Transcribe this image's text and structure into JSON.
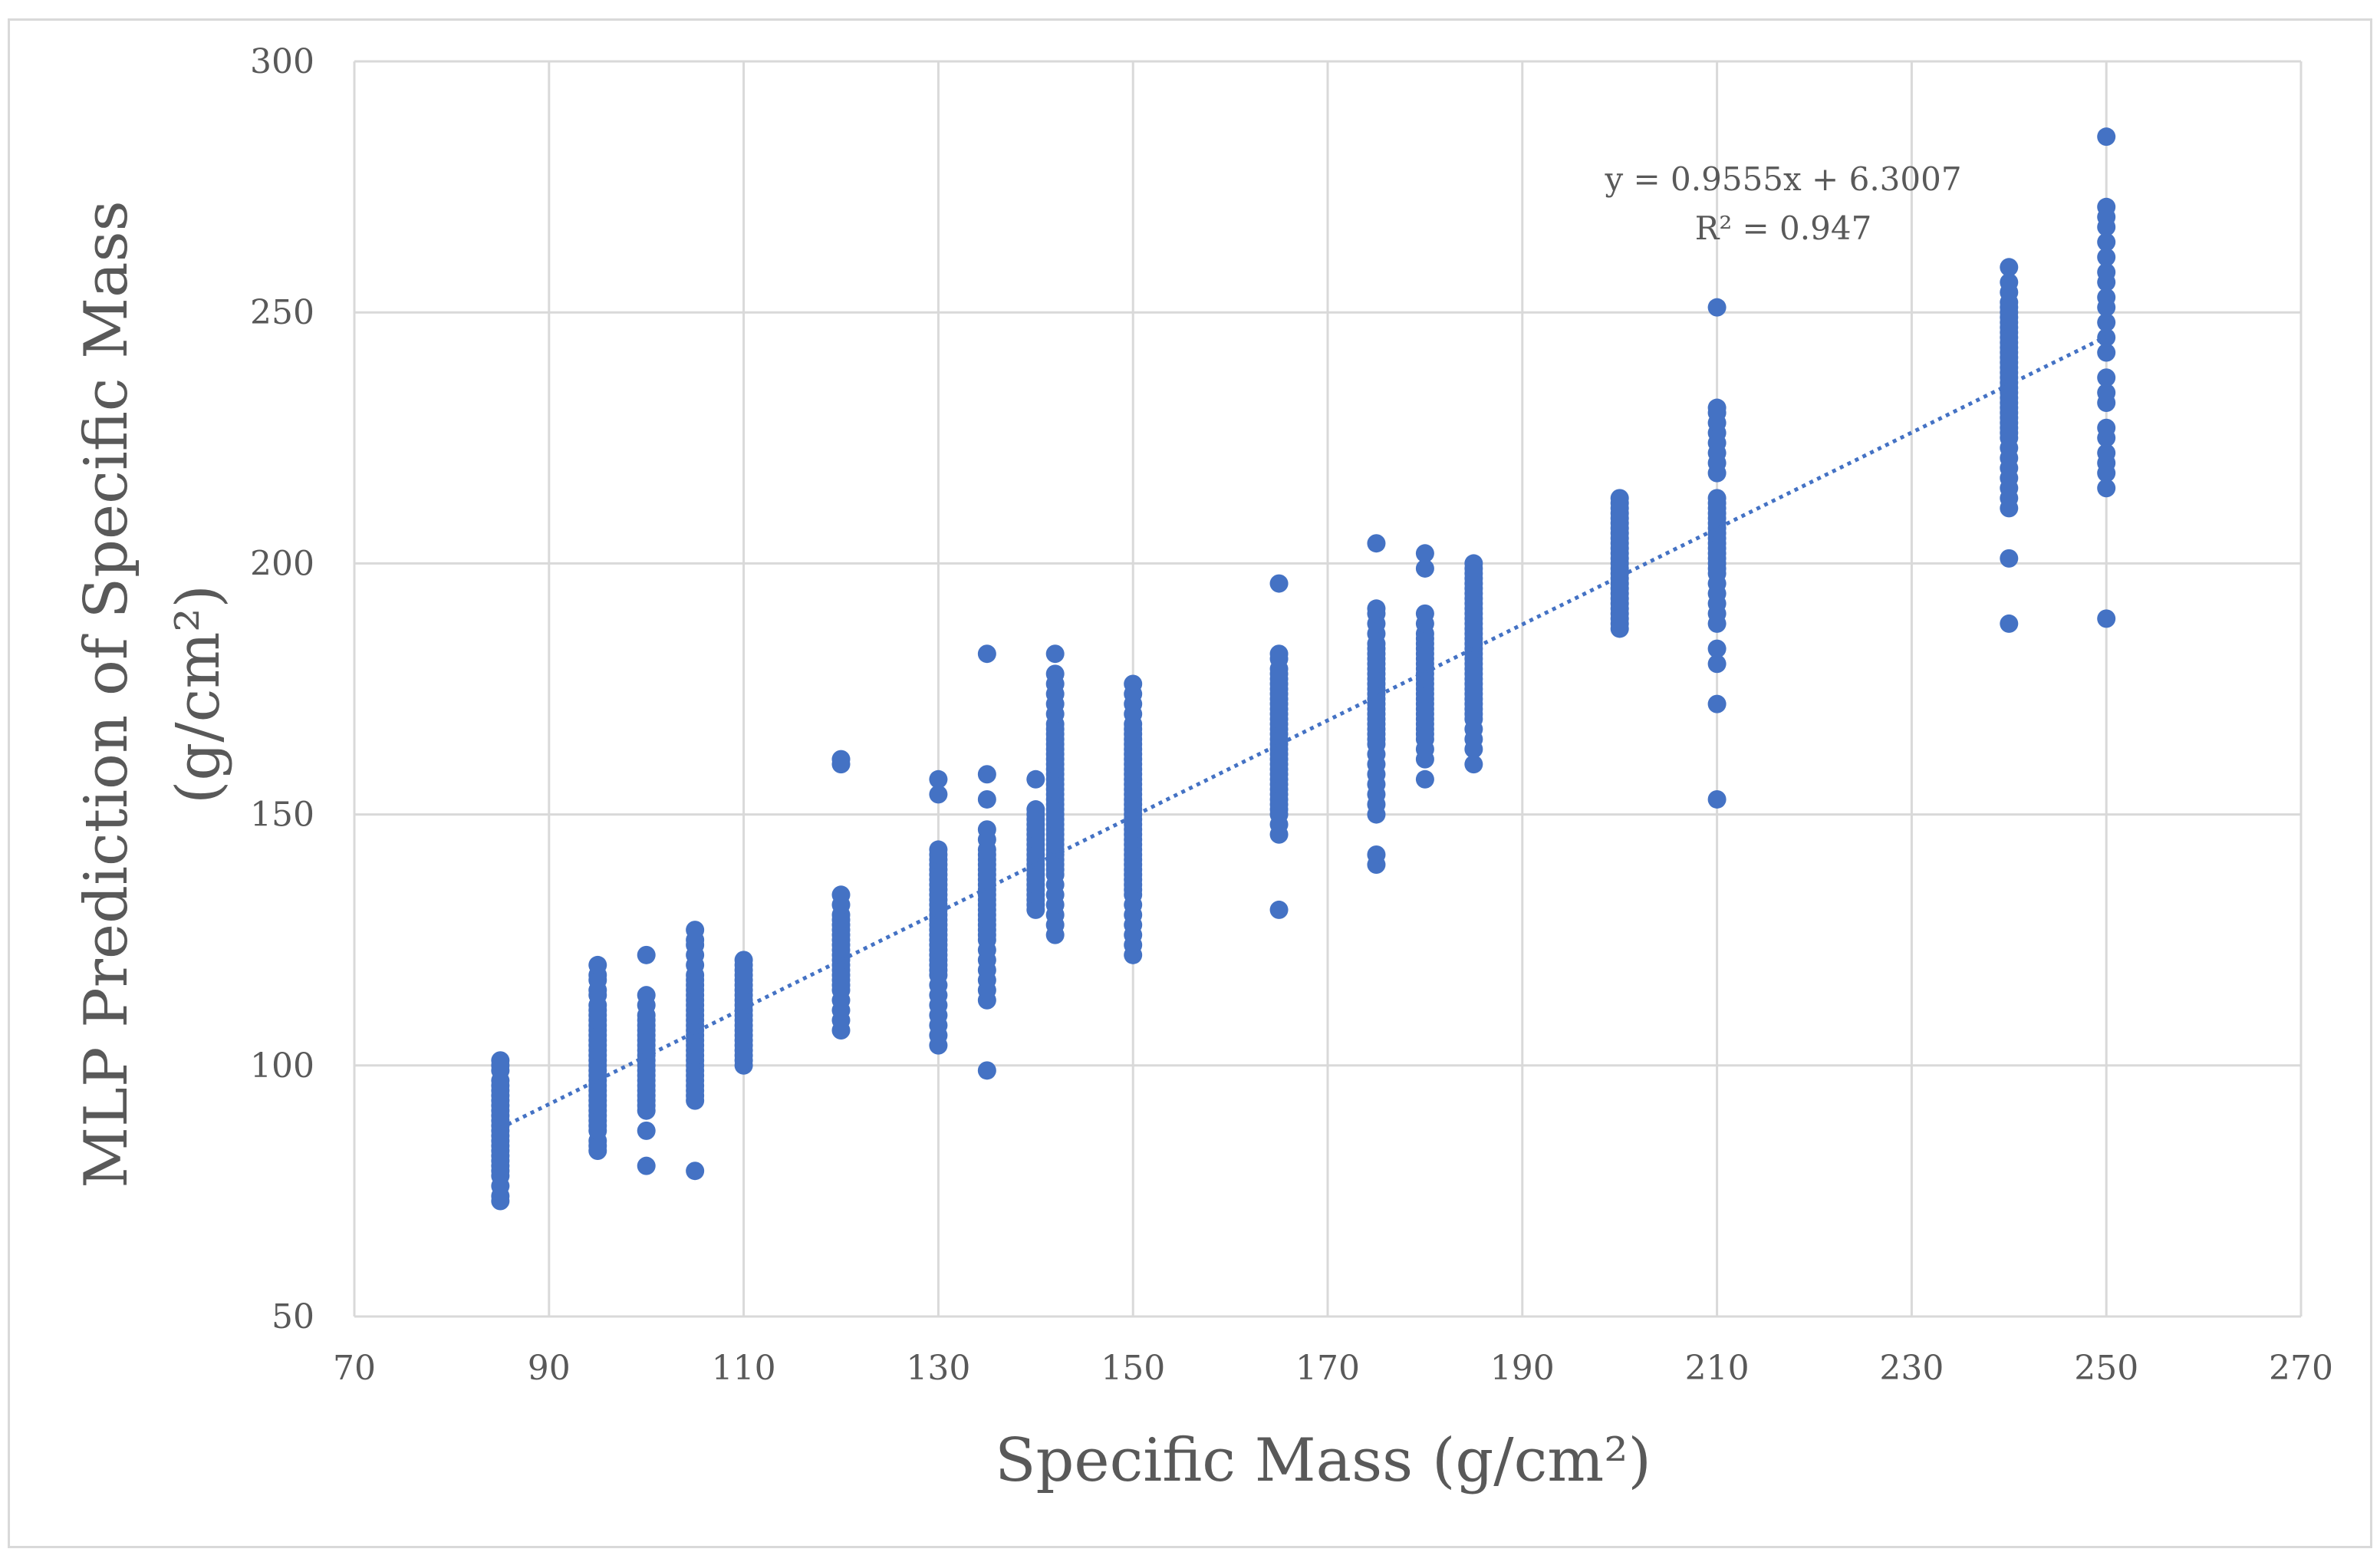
{
  "chart_data": {
    "type": "scatter",
    "xlabel": "Specific Mass  (g/cm²)",
    "ylabel_line1": "MLP Prediction of Specific Mass",
    "ylabel_line2": "(g/cm²)",
    "xlim": [
      70,
      270
    ],
    "ylim": [
      50,
      300
    ],
    "x_ticks": [
      70,
      90,
      110,
      130,
      150,
      170,
      190,
      210,
      230,
      250,
      270
    ],
    "y_ticks": [
      50,
      100,
      150,
      200,
      250,
      300
    ],
    "grid": true,
    "marker_color": "#4472C4",
    "trendline": {
      "type": "linear",
      "slope": 0.9555,
      "intercept": 6.3007,
      "x_range": [
        85,
        250
      ],
      "style": "dotted",
      "color": "#4472C4",
      "equation": "y = 0.9555x + 6.3007",
      "r_squared": "R² = 0.947"
    },
    "series": [
      {
        "groups": [
          {
            "x": 85,
            "y": [
              73,
              74,
              76,
              78,
              79,
              80,
              81,
              82,
              83,
              84,
              85,
              86,
              87,
              88,
              89,
              90,
              91,
              92,
              93,
              94,
              95,
              96,
              97,
              99,
              100,
              101
            ]
          },
          {
            "x": 95,
            "y": [
              83,
              84,
              85,
              87,
              88,
              89,
              90,
              91,
              92,
              93,
              94,
              95,
              96,
              97,
              98,
              99,
              100,
              101,
              102,
              103,
              104,
              105,
              106,
              107,
              108,
              109,
              110,
              111,
              112,
              114,
              115,
              117,
              118,
              120
            ]
          },
          {
            "x": 100,
            "y": [
              80,
              87,
              91,
              92,
              93,
              94,
              95,
              96,
              97,
              98,
              99,
              100,
              101,
              102,
              103,
              104,
              105,
              106,
              107,
              108,
              109,
              110,
              112,
              114,
              122
            ]
          },
          {
            "x": 105,
            "y": [
              79,
              93,
              94,
              95,
              96,
              97,
              98,
              99,
              100,
              101,
              102,
              103,
              104,
              105,
              106,
              107,
              108,
              109,
              110,
              111,
              112,
              113,
              114,
              115,
              116,
              117,
              118,
              120,
              122,
              124,
              125,
              127
            ]
          },
          {
            "x": 110,
            "y": [
              100,
              101,
              102,
              103,
              104,
              105,
              106,
              107,
              108,
              109,
              110,
              111,
              112,
              113,
              114,
              115,
              116,
              117,
              118,
              119,
              120,
              121
            ]
          },
          {
            "x": 120,
            "y": [
              107,
              109,
              111,
              113,
              115,
              116,
              117,
              118,
              119,
              120,
              121,
              122,
              123,
              124,
              125,
              126,
              127,
              128,
              129,
              130,
              132,
              134,
              160,
              161
            ]
          },
          {
            "x": 130,
            "y": [
              104,
              106,
              108,
              110,
              112,
              114,
              116,
              118,
              119,
              120,
              121,
              122,
              123,
              124,
              125,
              126,
              127,
              128,
              129,
              130,
              131,
              132,
              133,
              134,
              135,
              136,
              137,
              138,
              139,
              140,
              141,
              142,
              143,
              154,
              157
            ]
          },
          {
            "x": 135,
            "y": [
              99,
              113,
              115,
              117,
              119,
              121,
              123,
              125,
              126,
              127,
              128,
              129,
              130,
              131,
              132,
              133,
              134,
              135,
              136,
              137,
              138,
              139,
              140,
              141,
              142,
              143,
              145,
              147,
              153,
              158,
              182
            ]
          },
          {
            "x": 140,
            "y": [
              131,
              132,
              133,
              134,
              135,
              136,
              137,
              138,
              139,
              140,
              141,
              142,
              143,
              144,
              145,
              146,
              147,
              148,
              149,
              150,
              151,
              157
            ]
          },
          {
            "x": 142,
            "y": [
              126,
              128,
              130,
              132,
              134,
              136,
              138,
              139,
              140,
              141,
              142,
              143,
              144,
              145,
              146,
              147,
              148,
              149,
              150,
              151,
              152,
              153,
              154,
              155,
              156,
              157,
              158,
              159,
              160,
              161,
              162,
              163,
              164,
              165,
              166,
              167,
              168,
              170,
              172,
              174,
              176,
              178,
              182
            ]
          },
          {
            "x": 150,
            "y": [
              122,
              124,
              126,
              128,
              130,
              132,
              134,
              135,
              136,
              137,
              138,
              139,
              140,
              141,
              142,
              143,
              144,
              145,
              146,
              147,
              148,
              149,
              150,
              151,
              152,
              153,
              154,
              155,
              156,
              157,
              158,
              159,
              160,
              161,
              162,
              163,
              164,
              165,
              166,
              167,
              168,
              170,
              172,
              174,
              176
            ]
          },
          {
            "x": 165,
            "y": [
              131,
              146,
              148,
              150,
              151,
              152,
              153,
              154,
              155,
              156,
              157,
              158,
              159,
              160,
              161,
              162,
              163,
              164,
              165,
              166,
              167,
              168,
              169,
              170,
              171,
              172,
              173,
              174,
              175,
              176,
              177,
              178,
              179,
              181,
              182,
              196
            ]
          },
          {
            "x": 175,
            "y": [
              140,
              142,
              150,
              152,
              154,
              156,
              158,
              160,
              162,
              164,
              165,
              166,
              167,
              168,
              169,
              170,
              171,
              172,
              173,
              174,
              175,
              176,
              177,
              178,
              179,
              180,
              181,
              182,
              183,
              184,
              186,
              188,
              190,
              191,
              204
            ]
          },
          {
            "x": 180,
            "y": [
              157,
              161,
              163,
              165,
              166,
              167,
              168,
              169,
              170,
              171,
              172,
              173,
              174,
              175,
              176,
              177,
              178,
              179,
              180,
              181,
              182,
              183,
              184,
              185,
              186,
              188,
              190,
              199,
              202
            ]
          },
          {
            "x": 185,
            "y": [
              160,
              163,
              165,
              167,
              169,
              170,
              171,
              172,
              173,
              174,
              175,
              176,
              177,
              178,
              179,
              180,
              181,
              182,
              183,
              184,
              185,
              186,
              187,
              188,
              189,
              190,
              191,
              192,
              193,
              194,
              195,
              196,
              197,
              198,
              199,
              200
            ]
          },
          {
            "x": 200,
            "y": [
              187,
              188,
              189,
              190,
              191,
              192,
              193,
              194,
              195,
              196,
              197,
              198,
              199,
              200,
              201,
              202,
              203,
              204,
              205,
              206,
              207,
              208,
              209,
              210,
              211,
              212,
              213
            ]
          },
          {
            "x": 210,
            "y": [
              153,
              172,
              180,
              183,
              188,
              190,
              192,
              194,
              196,
              198,
              199,
              200,
              201,
              202,
              203,
              204,
              205,
              206,
              207,
              208,
              209,
              210,
              211,
              212,
              213,
              218,
              220,
              222,
              224,
              226,
              228,
              230,
              231,
              251
            ]
          },
          {
            "x": 240,
            "y": [
              188,
              201,
              211,
              213,
              215,
              217,
              219,
              221,
              223,
              225,
              226,
              227,
              228,
              229,
              230,
              231,
              232,
              233,
              234,
              235,
              236,
              237,
              238,
              239,
              240,
              241,
              242,
              243,
              244,
              245,
              246,
              247,
              248,
              249,
              250,
              251,
              252,
              254,
              256,
              259
            ]
          },
          {
            "x": 250,
            "y": [
              189,
              215,
              218,
              220,
              222,
              225,
              227,
              232,
              234,
              237,
              242,
              245,
              248,
              251,
              253,
              256,
              258,
              261,
              264,
              267,
              269,
              271,
              285
            ]
          }
        ]
      }
    ]
  }
}
